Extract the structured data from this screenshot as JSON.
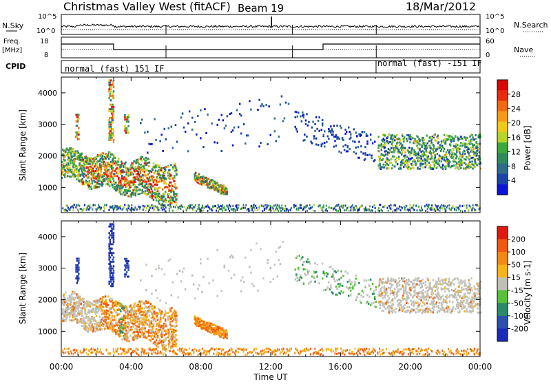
{
  "header": {
    "station": "Christmas Valley West (fitACF)",
    "beam": "Beam 19",
    "date": "18/Mar/2012"
  },
  "summary": {
    "nsky_label": "N.Sky",
    "nsearch_label": "N.Search",
    "nsky_ticks": [
      "10^5",
      "10^0"
    ],
    "nsearch_ticks": [
      "10^5",
      "10^0"
    ],
    "freq_label_1": "Freq.",
    "freq_label_2": "[MHz]",
    "freq_ticks": [
      "18",
      "8"
    ],
    "nave_label": "Nave",
    "nave_ticks": [
      "60",
      "0"
    ],
    "cpid_label": "CPID",
    "cpid_1": "normal (fast) 151 IF",
    "cpid_2": "normal (fast) -151 IF"
  },
  "chart_data": [
    {
      "type": "heatmap",
      "title": "Power",
      "ylabel": "Slant Range [km]",
      "xlabel": "Time UT",
      "xlim": [
        0,
        24
      ],
      "ylim": [
        200,
        4500
      ],
      "x_ticks": [
        "00:00",
        "04:00",
        "08:00",
        "12:00",
        "16:00",
        "20:00",
        "00:00"
      ],
      "y_ticks": [
        "1000",
        "2000",
        "3000",
        "4000"
      ],
      "colorbar_label": "Power [dB]",
      "colorbar_ticks": [
        "4",
        "8",
        "12",
        "16",
        "20",
        "24",
        "28"
      ],
      "colorbar_colors": [
        "#0a14d8",
        "#1a45a6",
        "#2e6c8a",
        "#2f8a5a",
        "#3aa83a",
        "#b8d42a",
        "#f0c81a",
        "#f59a18",
        "#f06a14",
        "#e82a10",
        "#d80808"
      ]
    },
    {
      "type": "heatmap",
      "title": "Velocity",
      "ylabel": "Slant Range [km]",
      "xlabel": "Time UT",
      "xlim": [
        0,
        24
      ],
      "ylim": [
        200,
        4500
      ],
      "x_ticks": [
        "00:00",
        "04:00",
        "08:00",
        "12:00",
        "16:00",
        "20:00",
        "00:00"
      ],
      "y_ticks": [
        "1000",
        "2000",
        "3000",
        "4000"
      ],
      "colorbar_label": "Velocity [m s-1]",
      "colorbar_ticks": [
        "200",
        "100",
        "50",
        "15",
        "-15",
        "-50",
        "-100",
        "-200"
      ],
      "colorbar_colors": [
        "#1a2ab8",
        "#2e4fae",
        "#2a8a6a",
        "#58c03a",
        "#c0c0b8",
        "#f5b41a",
        "#f08a14",
        "#f05a10",
        "#e01a10"
      ]
    }
  ],
  "xaxis": {
    "label": "Time UT"
  }
}
